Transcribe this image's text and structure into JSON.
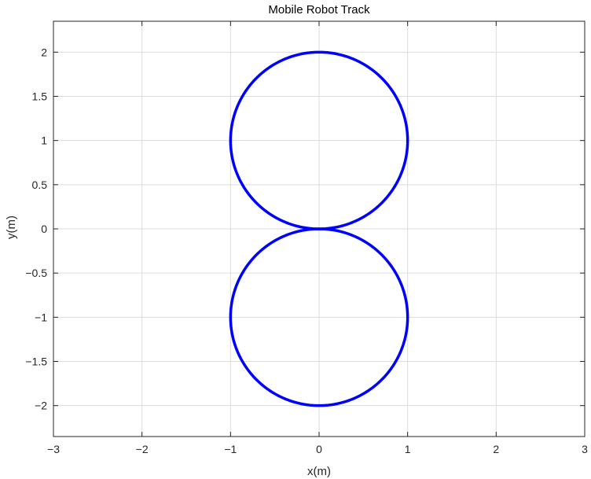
{
  "chart_data": {
    "type": "line",
    "title": "Mobile Robot Track",
    "xlabel": "x(m)",
    "ylabel": "y(m)",
    "xlim": [
      -3,
      3
    ],
    "ylim": [
      -2.35,
      2.35
    ],
    "xticks": [
      -3,
      -2,
      -1,
      0,
      1,
      2,
      3
    ],
    "xtick_labels": [
      "−3",
      "−2",
      "−1",
      "0",
      "1",
      "2",
      "3"
    ],
    "yticks": [
      2,
      1.5,
      1,
      0.5,
      0,
      -0.5,
      -1,
      -1.5,
      -2
    ],
    "ytick_labels": [
      "2",
      "1.5",
      "1",
      "0.5",
      "0",
      "−0.5",
      "−1",
      "−1.5",
      "−2"
    ],
    "grid": true,
    "series": [
      {
        "color": "#0000ff",
        "shape": "figure-eight",
        "circles": [
          {
            "center_x": 0,
            "center_y": 1,
            "radius": 1
          },
          {
            "center_x": 0,
            "center_y": -1,
            "radius": 1
          }
        ]
      }
    ]
  }
}
